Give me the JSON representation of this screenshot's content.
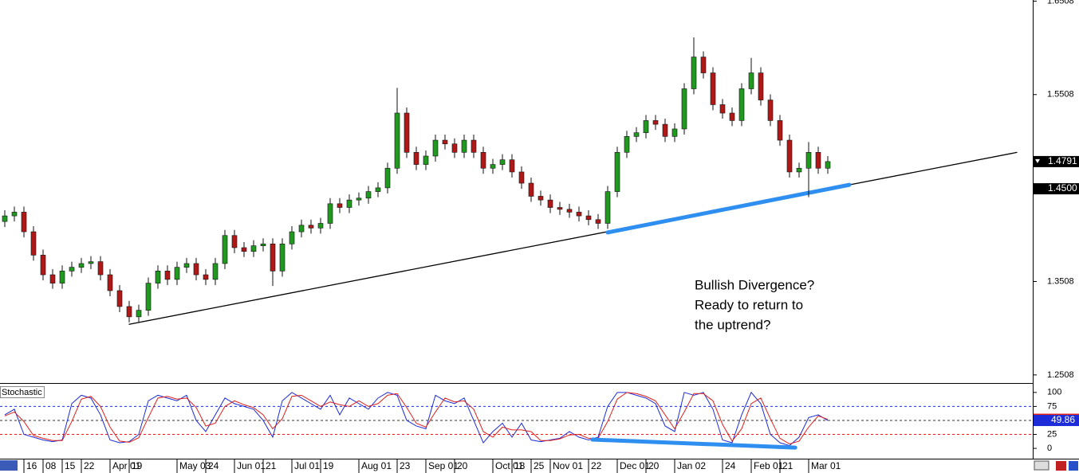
{
  "chart_data": [
    {
      "type": "candlestick",
      "categories": [
        null,
        null,
        "16",
        null,
        "08",
        null,
        "15",
        null,
        "22",
        null,
        null,
        "Apr 01",
        null,
        "19",
        null,
        null,
        null,
        null,
        "May 03",
        null,
        null,
        "24",
        null,
        null,
        "Jun 01",
        null,
        null,
        "21",
        null,
        null,
        "Jul 01",
        null,
        null,
        "19",
        null,
        null,
        null,
        "Aug 01",
        null,
        null,
        null,
        "23",
        null,
        null,
        "Sep 01",
        null,
        null,
        "20",
        null,
        null,
        null,
        "Oct 01",
        null,
        "18",
        null,
        "25",
        null,
        "Nov 01",
        null,
        null,
        null,
        "22",
        null,
        null,
        "Dec 01",
        null,
        null,
        "20",
        null,
        null,
        "Jan 02",
        null,
        null,
        null,
        null,
        "24",
        null,
        null,
        "Feb 01",
        null,
        null,
        "21",
        null,
        null,
        "Mar 01",
        null,
        null
      ],
      "open": [
        1.415,
        1.421,
        1.425,
        1.404,
        1.379,
        1.358,
        1.349,
        1.362,
        1.366,
        1.37,
        1.372,
        1.358,
        1.341,
        1.324,
        1.313,
        1.32,
        1.349,
        1.362,
        1.353,
        1.366,
        1.37,
        1.358,
        1.353,
        1.37,
        1.4,
        1.387,
        1.383,
        1.389,
        1.391,
        1.362,
        1.391,
        1.404,
        1.411,
        1.408,
        1.413,
        1.434,
        1.43,
        1.438,
        1.44,
        1.447,
        1.451,
        1.472,
        1.531,
        1.489,
        1.476,
        1.485,
        1.502,
        1.498,
        1.489,
        1.502,
        1.489,
        1.472,
        1.476,
        1.481,
        1.468,
        1.456,
        1.442,
        1.438,
        1.43,
        1.428,
        1.425,
        1.421,
        1.417,
        1.413,
        1.447,
        1.489,
        1.506,
        1.51,
        1.523,
        1.519,
        1.506,
        1.514,
        1.557,
        1.591,
        1.574,
        1.54,
        1.531,
        1.523,
        1.557,
        1.574,
        1.545,
        1.523,
        1.502,
        1.468,
        1.472,
        1.489,
        1.472
      ],
      "high": [
        1.427,
        1.431,
        1.431,
        1.41,
        1.385,
        1.364,
        1.368,
        1.372,
        1.376,
        1.378,
        1.378,
        1.364,
        1.347,
        1.33,
        1.326,
        1.355,
        1.368,
        1.368,
        1.372,
        1.376,
        1.376,
        1.364,
        1.376,
        1.406,
        1.406,
        1.393,
        1.395,
        1.397,
        1.397,
        1.397,
        1.41,
        1.417,
        1.417,
        1.419,
        1.44,
        1.44,
        1.444,
        1.446,
        1.453,
        1.457,
        1.478,
        1.558,
        1.537,
        1.495,
        1.491,
        1.508,
        1.508,
        1.504,
        1.508,
        1.508,
        1.495,
        1.482,
        1.487,
        1.487,
        1.474,
        1.462,
        1.448,
        1.444,
        1.436,
        1.434,
        1.431,
        1.427,
        1.423,
        1.453,
        1.495,
        1.512,
        1.516,
        1.529,
        1.529,
        1.525,
        1.52,
        1.563,
        1.612,
        1.597,
        1.58,
        1.546,
        1.537,
        1.563,
        1.59,
        1.58,
        1.551,
        1.529,
        1.508,
        1.478,
        1.5,
        1.495,
        1.485
      ],
      "low": [
        1.409,
        1.415,
        1.398,
        1.373,
        1.352,
        1.343,
        1.343,
        1.356,
        1.36,
        1.364,
        1.352,
        1.335,
        1.318,
        1.307,
        1.307,
        1.314,
        1.343,
        1.347,
        1.347,
        1.36,
        1.352,
        1.347,
        1.347,
        1.364,
        1.381,
        1.377,
        1.377,
        1.383,
        1.346,
        1.356,
        1.385,
        1.398,
        1.402,
        1.402,
        1.407,
        1.424,
        1.424,
        1.432,
        1.434,
        1.441,
        1.445,
        1.466,
        1.483,
        1.47,
        1.47,
        1.479,
        1.492,
        1.483,
        1.483,
        1.483,
        1.466,
        1.466,
        1.47,
        1.462,
        1.45,
        1.436,
        1.432,
        1.424,
        1.422,
        1.419,
        1.415,
        1.411,
        1.407,
        1.407,
        1.441,
        1.483,
        1.5,
        1.504,
        1.513,
        1.5,
        1.5,
        1.508,
        1.551,
        1.568,
        1.534,
        1.525,
        1.517,
        1.517,
        1.551,
        1.539,
        1.517,
        1.496,
        1.462,
        1.462,
        1.441,
        1.466,
        1.466
      ],
      "close": [
        1.421,
        1.425,
        1.404,
        1.379,
        1.358,
        1.349,
        1.362,
        1.366,
        1.37,
        1.372,
        1.358,
        1.341,
        1.324,
        1.313,
        1.32,
        1.349,
        1.362,
        1.353,
        1.366,
        1.37,
        1.358,
        1.353,
        1.37,
        1.4,
        1.387,
        1.383,
        1.389,
        1.391,
        1.362,
        1.391,
        1.404,
        1.411,
        1.408,
        1.413,
        1.434,
        1.43,
        1.438,
        1.44,
        1.447,
        1.451,
        1.472,
        1.531,
        1.489,
        1.476,
        1.485,
        1.502,
        1.498,
        1.489,
        1.502,
        1.489,
        1.472,
        1.476,
        1.481,
        1.468,
        1.456,
        1.442,
        1.438,
        1.43,
        1.428,
        1.425,
        1.421,
        1.417,
        1.413,
        1.447,
        1.489,
        1.506,
        1.51,
        1.523,
        1.519,
        1.506,
        1.514,
        1.557,
        1.591,
        1.574,
        1.54,
        1.531,
        1.523,
        1.557,
        1.574,
        1.545,
        1.523,
        1.502,
        1.468,
        1.472,
        1.489,
        1.472,
        1.4791
      ],
      "up_color": "#1f9a1f",
      "down_color": "#b01818",
      "ylim": [
        1.243,
        1.652
      ],
      "yticks": [
        1.2508,
        1.3508,
        1.5508,
        1.6508
      ],
      "price_labels": [
        {
          "value": 1.45,
          "label": "1.4500"
        }
      ],
      "trendlines": [
        {
          "color": "#000000",
          "width": 1.3,
          "x": [
            13,
            105.75
          ],
          "y": [
            1.305,
            1.4889
          ]
        },
        {
          "color": "#2f8ff0",
          "width": 5,
          "x": [
            63,
            88.25
          ],
          "y": [
            1.4033,
            1.4542
          ]
        }
      ],
      "annotation": [
        "Bullish Divergence?",
        "Ready to return to",
        "the uptrend?"
      ]
    },
    {
      "type": "line",
      "title": "Stochastic",
      "series": [
        {
          "color": "#1c2cd8",
          "values": [
            60,
            70,
            25,
            20,
            15,
            12,
            15,
            80,
            95,
            90,
            60,
            15,
            10,
            12,
            25,
            85,
            95,
            90,
            85,
            95,
            50,
            30,
            60,
            90,
            80,
            75,
            70,
            50,
            20,
            85,
            100,
            90,
            80,
            70,
            95,
            60,
            90,
            80,
            70,
            90,
            100,
            95,
            50,
            40,
            35,
            95,
            85,
            80,
            90,
            50,
            10,
            30,
            45,
            20,
            45,
            15,
            12,
            15,
            18,
            30,
            20,
            15,
            20,
            75,
            100,
            100,
            95,
            90,
            80,
            40,
            30,
            100,
            95,
            100,
            70,
            15,
            10,
            60,
            100,
            80,
            25,
            10,
            5,
            20,
            55,
            60,
            49.86
          ]
        },
        {
          "color": "#e0201c",
          "values": [
            58,
            65,
            48,
            23,
            18,
            14,
            14,
            48,
            88,
            93,
            75,
            38,
            13,
            11,
            19,
            55,
            90,
            93,
            88,
            90,
            73,
            40,
            45,
            75,
            85,
            78,
            73,
            60,
            35,
            53,
            93,
            95,
            85,
            75,
            83,
            78,
            75,
            85,
            75,
            80,
            95,
            98,
            73,
            45,
            38,
            65,
            90,
            83,
            85,
            70,
            30,
            20,
            38,
            33,
            33,
            30,
            14,
            14,
            17,
            24,
            25,
            18,
            18,
            48,
            88,
            100,
            98,
            93,
            85,
            60,
            35,
            65,
            98,
            98,
            85,
            43,
            13,
            35,
            80,
            90,
            53,
            18,
            8,
            13,
            38,
            58,
            52
          ]
        }
      ],
      "ylim": [
        -17,
        114
      ],
      "yticks": [
        0,
        25,
        75,
        100
      ],
      "reference_lines": [
        {
          "value": 75,
          "color": "#1c2cd8"
        },
        {
          "value": 50,
          "color": "#333333"
        },
        {
          "value": 25,
          "color": "#e0201c"
        }
      ],
      "trendlines": [
        {
          "color": "#2f8ff0",
          "width": 5,
          "x": [
            61.4,
            82.6
          ],
          "y": [
            15.7,
            1.4
          ]
        }
      ]
    }
  ]
}
